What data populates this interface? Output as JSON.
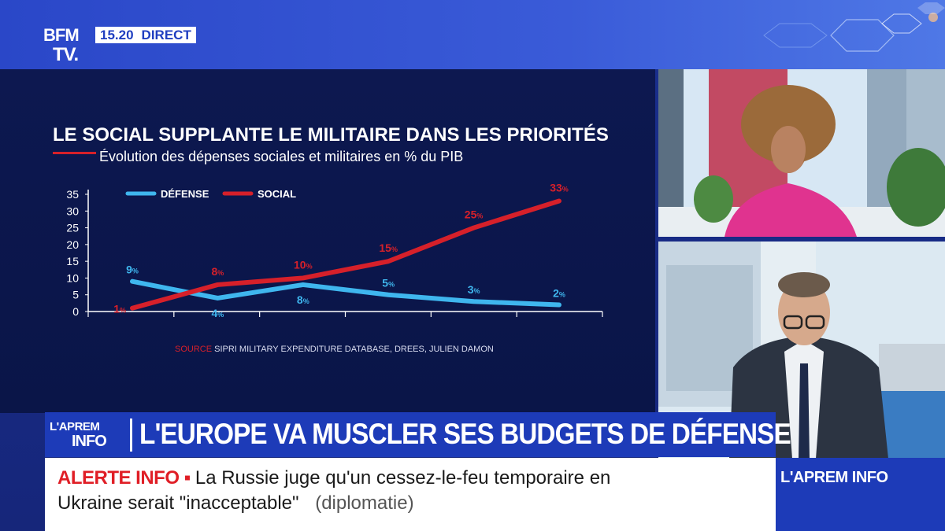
{
  "header": {
    "logo_line1": "BFM",
    "logo_line2": "TV.",
    "time": "15.20",
    "live_label": "DIRECT"
  },
  "chart_title": "LE SOCIAL SUPPLANTE LE MILITAIRE DANS LES PRIORITÉS",
  "chart_subtitle": "Évolution des dépenses sociales et militaires en % du PIB",
  "source_label": "SOURCE",
  "source_text": "SIPRI MILITARY EXPENDITURE DATABASE, DREES, JULIEN DAMON",
  "chart_data": {
    "type": "line",
    "title": "LE SOCIAL SUPPLANTE LE MILITAIRE DANS LES PRIORITÉS",
    "subtitle": "Évolution des dépenses sociales et militaires en % du PIB",
    "xlabel": "",
    "ylabel": "",
    "ylim": [
      0,
      35
    ],
    "yticks": [
      "0",
      "5",
      "10",
      "15",
      "20",
      "25",
      "30",
      "35"
    ],
    "x": [
      0,
      1,
      2,
      3,
      4,
      5
    ],
    "legend_position": "top-left",
    "grid": false,
    "series": [
      {
        "name": "DÉFENSE",
        "color": "#3fb6ee",
        "values": [
          9,
          4,
          8,
          5,
          3,
          2
        ],
        "labels": [
          "9",
          "4",
          "8",
          "5",
          "3",
          "2"
        ],
        "label_positions": [
          "above",
          "below",
          "below",
          "above",
          "above",
          "above"
        ]
      },
      {
        "name": "SOCIAL",
        "color": "#d6202a",
        "values": [
          1,
          8,
          10,
          15,
          25,
          33
        ],
        "labels": [
          "1",
          "8",
          "10",
          "15",
          "25",
          "33"
        ],
        "label_positions": [
          "left",
          "above",
          "above",
          "above",
          "above",
          "above"
        ]
      }
    ],
    "unit_suffix": "%"
  },
  "banner": {
    "logo_line1": "L'APREM",
    "logo_line2": "INFO",
    "headline": "L'EUROPE VA MUSCLER SES BUDGETS DE DÉFENSE"
  },
  "ticker": {
    "alert_label": "ALERTE INFO",
    "line1": "La Russie juge qu'un cessez-le-feu temporaire en",
    "line2": "Ukraine serait \"inacceptable\"",
    "tag": "(diplomatie)"
  },
  "channel_box": "L'APREM INFO",
  "colors": {
    "brand_blue": "#1d3bb8",
    "chart_bg": "#0d1850",
    "social_red": "#d6202a",
    "defense_blue": "#3fb6ee"
  }
}
